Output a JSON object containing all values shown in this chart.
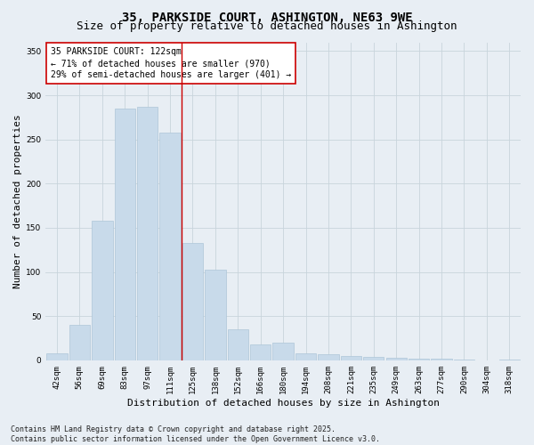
{
  "title": "35, PARKSIDE COURT, ASHINGTON, NE63 9WE",
  "subtitle": "Size of property relative to detached houses in Ashington",
  "xlabel": "Distribution of detached houses by size in Ashington",
  "ylabel": "Number of detached properties",
  "categories": [
    "42sqm",
    "56sqm",
    "69sqm",
    "83sqm",
    "97sqm",
    "111sqm",
    "125sqm",
    "138sqm",
    "152sqm",
    "166sqm",
    "180sqm",
    "194sqm",
    "208sqm",
    "221sqm",
    "235sqm",
    "249sqm",
    "263sqm",
    "277sqm",
    "290sqm",
    "304sqm",
    "318sqm"
  ],
  "values": [
    8,
    40,
    158,
    285,
    287,
    258,
    133,
    103,
    35,
    18,
    20,
    8,
    7,
    5,
    4,
    3,
    2,
    2,
    1,
    0,
    1
  ],
  "bar_color": "#c8daea",
  "bar_edgecolor": "#aec6d8",
  "vline_x": 5.5,
  "vline_color": "#cc0000",
  "annotation_line1": "35 PARKSIDE COURT: 122sqm",
  "annotation_line2": "← 71% of detached houses are smaller (970)",
  "annotation_line3": "29% of semi-detached houses are larger (401) →",
  "annotation_box_color": "#cc0000",
  "annotation_box_fill": "#ffffff",
  "ylim": [
    0,
    360
  ],
  "yticks": [
    0,
    50,
    100,
    150,
    200,
    250,
    300,
    350
  ],
  "footer": "Contains HM Land Registry data © Crown copyright and database right 2025.\nContains public sector information licensed under the Open Government Licence v3.0.",
  "bg_color": "#e8eef4",
  "plot_bg_color": "#e8eef4",
  "grid_color": "#c8d4dc",
  "title_fontsize": 10,
  "subtitle_fontsize": 9,
  "axis_label_fontsize": 8,
  "tick_fontsize": 6.5,
  "annotation_fontsize": 7,
  "footer_fontsize": 6
}
